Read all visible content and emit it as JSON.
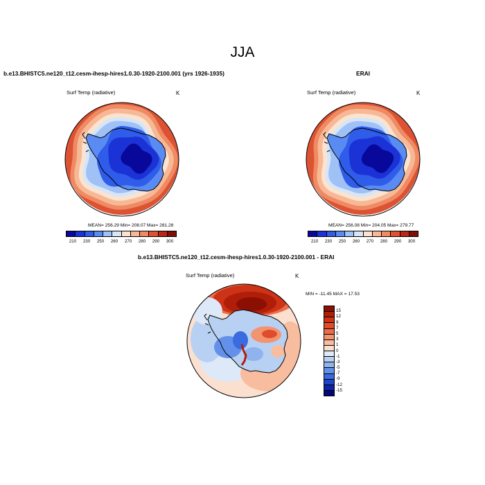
{
  "title": "JJA",
  "panels": {
    "left": {
      "title": "b.e13.BHISTC5.ne120_t12.cesm-ihesp-hires1.0.30-1920-2100.001 (yrs 1926-1935)",
      "var_label": "Surf Temp (radiative)",
      "unit": "K",
      "stats": "MEAN= 256.29  Min= 208.07  Max= 281.28"
    },
    "right": {
      "title": "ERAI",
      "var_label": "Surf Temp (radiative)",
      "unit": "K",
      "stats": "MEAN= 256.08  Min= 204.05  Max= 279.77"
    },
    "diff": {
      "title": "b.e13.BHISTC5.ne120_t12.cesm-ihesp-hires1.0.30-1920-2100.001 - ERAI",
      "var_label": "Surf Temp (radiative)",
      "unit": "K",
      "stats": "MIN = -11.45 MAX =  17.53"
    }
  },
  "chart_data": [
    {
      "type": "heatmap",
      "projection": "south-polar-stereographic",
      "title": "b.e13.BHISTC5.ne120_t12.cesm-ihesp-hires1.0.30-1920-2100.001 (yrs 1926-1935)",
      "variable": "Surf Temp (radiative)",
      "units": "K",
      "mean": 256.29,
      "min": 208.07,
      "max": 281.28,
      "colorbar_ticks": [
        "210",
        "230",
        "250",
        "260",
        "270",
        "280",
        "290",
        "300"
      ],
      "colorbar_colors": [
        "#08089a",
        "#1b33d6",
        "#2f5ce9",
        "#5a8bf2",
        "#9fc1f6",
        "#d6e6f8",
        "#fbe3d0",
        "#f7b896",
        "#ef8a63",
        "#dd5233",
        "#bb2715",
        "#7e0f06"
      ]
    },
    {
      "type": "heatmap",
      "projection": "south-polar-stereographic",
      "title": "ERAI",
      "variable": "Surf Temp (radiative)",
      "units": "K",
      "mean": 256.08,
      "min": 204.05,
      "max": 279.77,
      "colorbar_ticks": [
        "210",
        "230",
        "250",
        "260",
        "270",
        "280",
        "290",
        "300"
      ],
      "colorbar_colors": [
        "#08089a",
        "#1b33d6",
        "#2f5ce9",
        "#5a8bf2",
        "#9fc1f6",
        "#d6e6f8",
        "#fbe3d0",
        "#f7b896",
        "#ef8a63",
        "#dd5233",
        "#bb2715",
        "#7e0f06"
      ]
    },
    {
      "type": "heatmap",
      "projection": "south-polar-stereographic",
      "title": "b.e13.BHISTC5.ne120_t12.cesm-ihesp-hires1.0.30-1920-2100.001 - ERAI",
      "variable": "Surf Temp (radiative)",
      "units": "K",
      "min": -11.45,
      "max": 17.53,
      "colorbar_ticks": [
        "15",
        "12",
        "9",
        "7",
        "5",
        "3",
        "1",
        "0",
        "-1",
        "-3",
        "-5",
        "-7",
        "-9",
        "-12",
        "-15"
      ],
      "colorbar_colors": [
        "#8c0f03",
        "#b01e0a",
        "#cc3317",
        "#df4c2c",
        "#eb6e49",
        "#f39470",
        "#f8bc9f",
        "#fbe0cf",
        "#dde9f8",
        "#b8d1f3",
        "#8fb3ee",
        "#6390e9",
        "#3a6be0",
        "#1d45c9",
        "#0b25a6",
        "#04077a"
      ]
    }
  ]
}
